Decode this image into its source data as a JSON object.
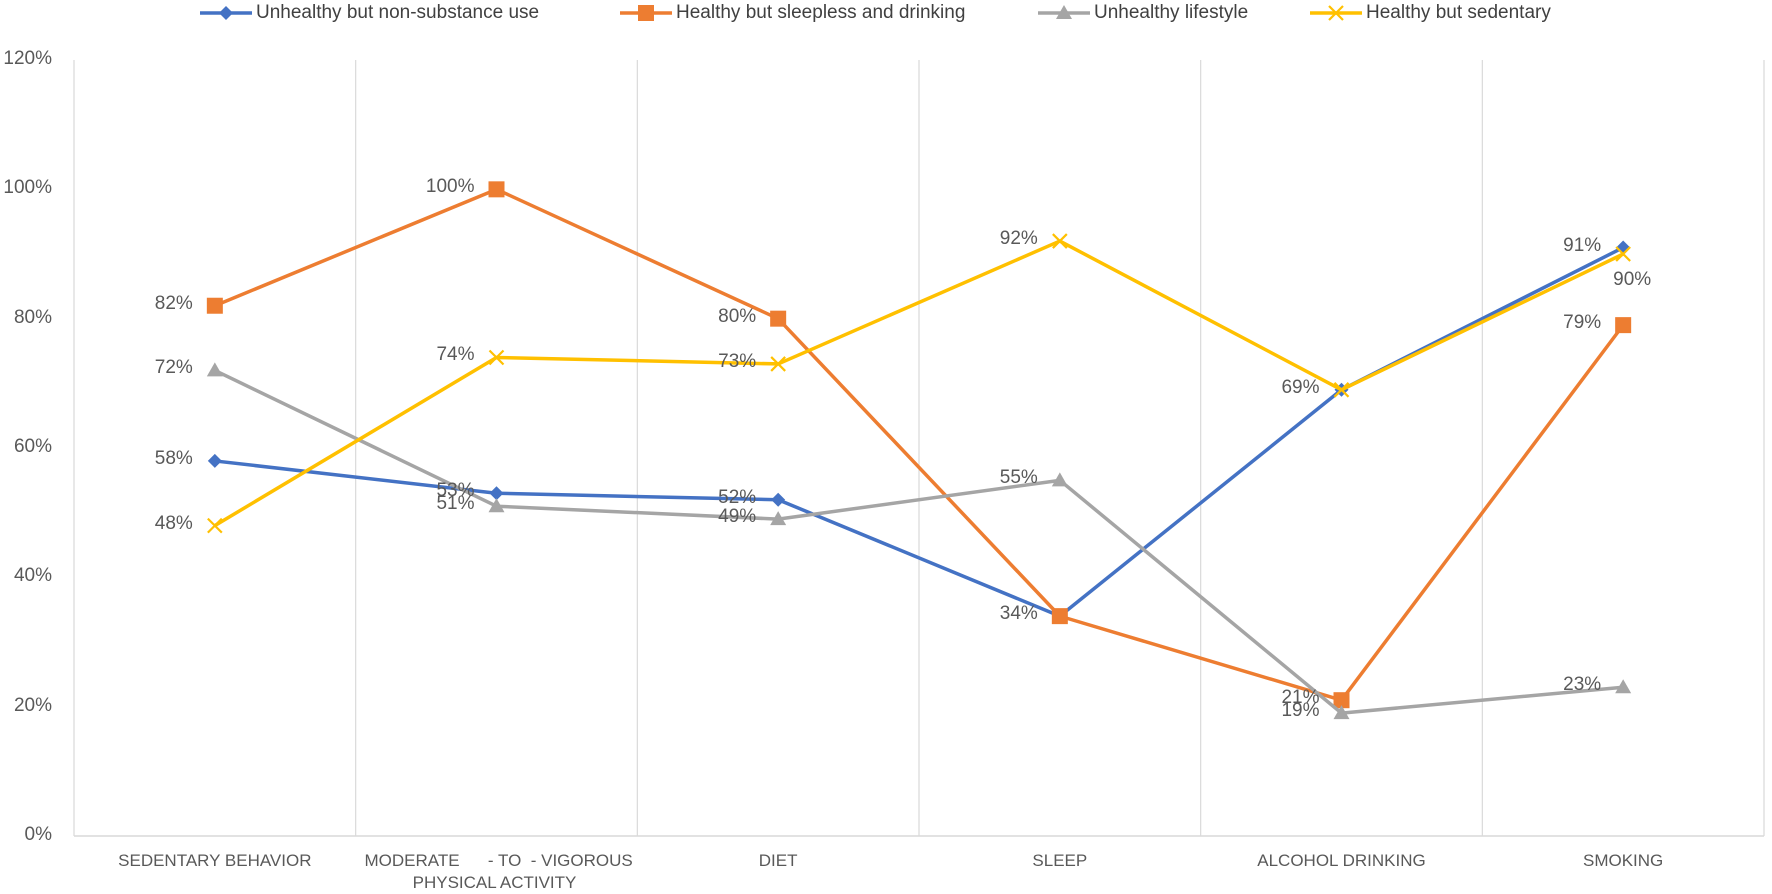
{
  "chart_data": {
    "type": "line",
    "title": "",
    "xlabel": "",
    "ylabel": "",
    "categories": [
      "SEDENTARY BEHAVIOR",
      "MODERATE      - TO  - VIGOROUS\nPHYSICAL ACTIVITY",
      "DIET",
      "SLEEP",
      "ALCOHOL DRINKING",
      "SMOKING"
    ],
    "ylim": [
      0,
      120
    ],
    "yticks": [
      "0%",
      "20%",
      "40%",
      "60%",
      "80%",
      "100%",
      "120%"
    ],
    "legend_position": "top",
    "grid": "vertical",
    "series": [
      {
        "name": "Unhealthy but non-substance use",
        "color": "#4472C4",
        "marker": "diamond",
        "values": [
          58,
          53,
          52,
          34,
          69,
          91
        ],
        "labels": [
          "58%",
          "53%",
          "52%",
          "",
          "69%",
          "91%"
        ]
      },
      {
        "name": "Healthy but sleepless and drinking",
        "color": "#ED7D31",
        "marker": "square",
        "values": [
          82,
          100,
          80,
          34,
          21,
          79
        ],
        "labels": [
          "82%",
          "100%",
          "80%",
          "34%",
          "21%",
          "79%"
        ]
      },
      {
        "name": "Unhealthy lifestyle",
        "color": "#A5A5A5",
        "marker": "triangle",
        "values": [
          72,
          51,
          49,
          55,
          19,
          23
        ],
        "labels": [
          "72%",
          "51%",
          "49%",
          "55%",
          "19%",
          "23%"
        ]
      },
      {
        "name": "Healthy but sedentary",
        "color": "#FFC000",
        "marker": "x",
        "values": [
          48,
          74,
          73,
          92,
          69,
          90
        ],
        "labels": [
          "48%",
          "74%",
          "73%",
          "92%",
          "",
          "90%"
        ]
      }
    ]
  }
}
